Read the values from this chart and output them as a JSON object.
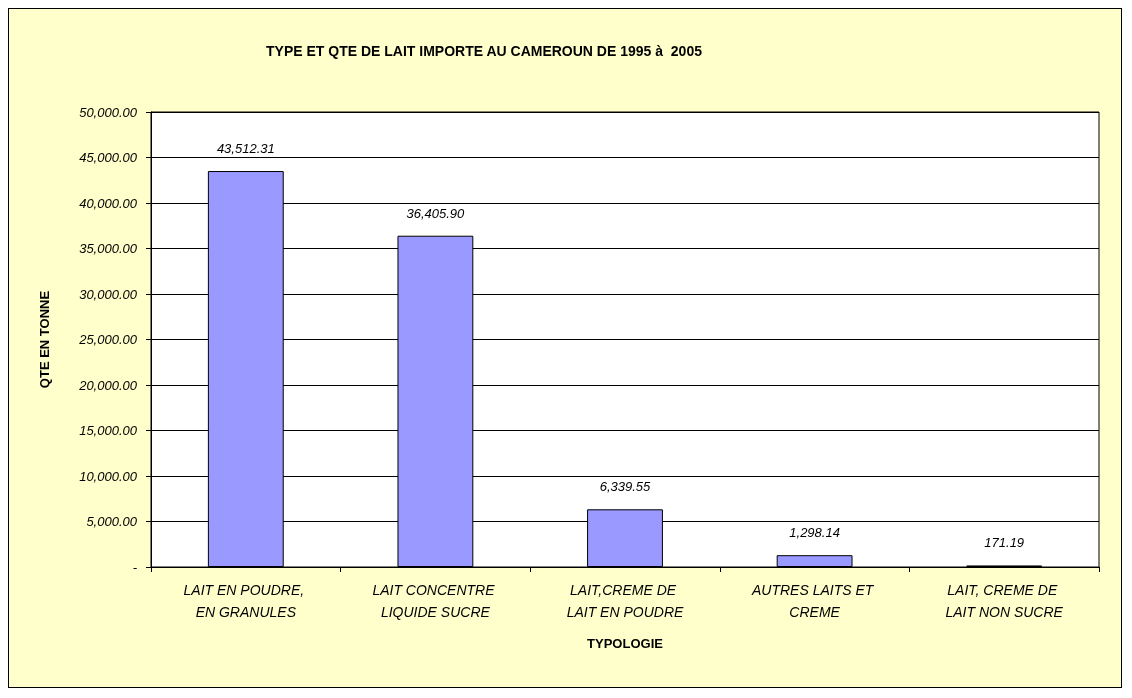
{
  "chart_data": {
    "type": "bar",
    "title": "TYPE ET QTE DE LAIT IMPORTE AU CAMEROUN DE 1995 à  2005",
    "xlabel": "TYPOLOGIE",
    "ylabel": "QTE EN TONNE",
    "categories": [
      "LAIT EN POUDRE, EN GRANULES",
      "LAIT CONCENTRE LIQUIDE SUCRE",
      "LAIT,CREME DE LAIT EN POUDRE",
      "AUTRES LAITS ET CREME",
      "LAIT, CREME DE LAIT NON SUCRE"
    ],
    "values": [
      43512.31,
      36405.9,
      6339.55,
      1298.14,
      171.19
    ],
    "value_labels": [
      "43,512.31",
      "36,405.90",
      "6,339.55",
      "1,298.14",
      "171.19"
    ],
    "color": "#9999ff",
    "ylim": [
      0,
      50000
    ],
    "yticks": [
      {
        "value": 0,
        "label": "-"
      },
      {
        "value": 5000,
        "label": "5,000.00"
      },
      {
        "value": 10000,
        "label": "10,000.00"
      },
      {
        "value": 15000,
        "label": "15,000.00"
      },
      {
        "value": 20000,
        "label": "20,000.00"
      },
      {
        "value": 25000,
        "label": "25,000.00"
      },
      {
        "value": 30000,
        "label": "30,000.00"
      },
      {
        "value": 35000,
        "label": "35,000.00"
      },
      {
        "value": 40000,
        "label": "40,000.00"
      },
      {
        "value": 45000,
        "label": "45,000.00"
      },
      {
        "value": 50000,
        "label": "50,000.00"
      }
    ],
    "grid": "y"
  }
}
